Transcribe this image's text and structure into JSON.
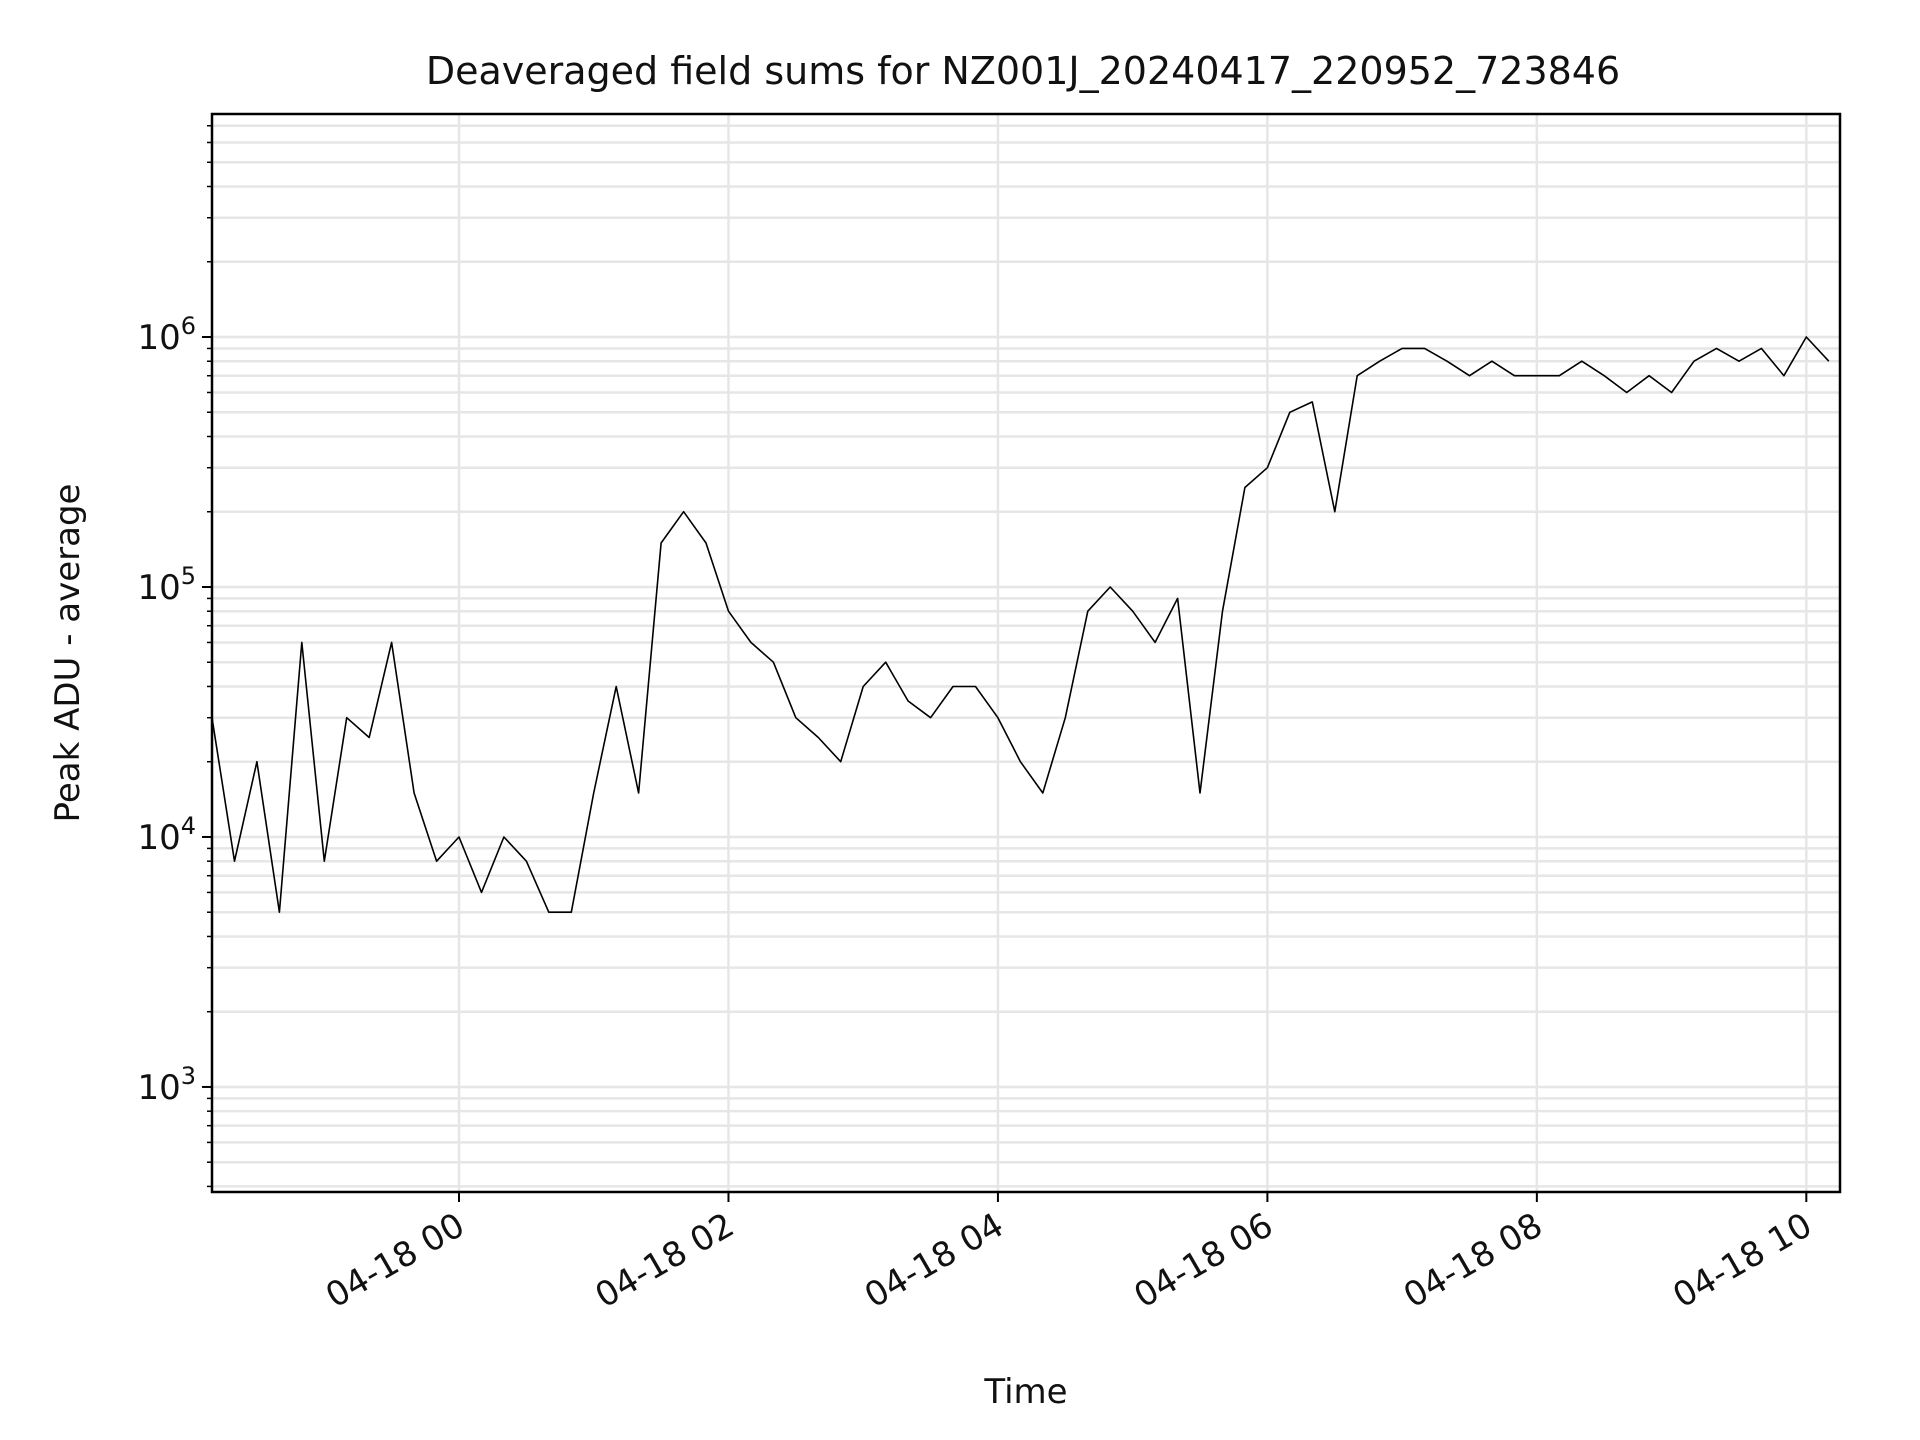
{
  "chart_data": {
    "type": "line",
    "title": "Deaveraged field sums for NZ001J_20240417_220952_723846",
    "xlabel": "Time",
    "ylabel": "Peak ADU - average",
    "yscale": "log",
    "ylim": [
      380,
      7800000
    ],
    "xlim": [
      "2024-04-17T22:10:00",
      "2024-04-18T10:15:00"
    ],
    "grid": true,
    "x_ticks": [
      {
        "value": "2024-04-18T00:00:00",
        "label": "04-18 00"
      },
      {
        "value": "2024-04-18T02:00:00",
        "label": "04-18 02"
      },
      {
        "value": "2024-04-18T04:00:00",
        "label": "04-18 04"
      },
      {
        "value": "2024-04-18T06:00:00",
        "label": "04-18 06"
      },
      {
        "value": "2024-04-18T08:00:00",
        "label": "04-18 08"
      },
      {
        "value": "2024-04-18T10:00:00",
        "label": "04-18 10"
      }
    ],
    "y_ticks": [
      {
        "value": 1000,
        "base": "10",
        "exp": "3"
      },
      {
        "value": 10000,
        "base": "10",
        "exp": "4"
      },
      {
        "value": 100000,
        "base": "10",
        "exp": "5"
      },
      {
        "value": 1000000,
        "base": "10",
        "exp": "6"
      }
    ],
    "series": [
      {
        "color": "#000000",
        "points": [
          [
            "2024-04-17T22:10:00",
            30000
          ],
          [
            "2024-04-17T22:20:00",
            8000
          ],
          [
            "2024-04-17T22:30:00",
            20000
          ],
          [
            "2024-04-17T22:40:00",
            5000
          ],
          [
            "2024-04-17T22:50:00",
            60000
          ],
          [
            "2024-04-17T23:00:00",
            8000
          ],
          [
            "2024-04-17T23:10:00",
            30000
          ],
          [
            "2024-04-17T23:20:00",
            25000
          ],
          [
            "2024-04-17T23:30:00",
            60000
          ],
          [
            "2024-04-17T23:40:00",
            15000
          ],
          [
            "2024-04-17T23:50:00",
            8000
          ],
          [
            "2024-04-18T00:00:00",
            10000
          ],
          [
            "2024-04-18T00:10:00",
            6000
          ],
          [
            "2024-04-18T00:20:00",
            10000
          ],
          [
            "2024-04-18T00:30:00",
            8000
          ],
          [
            "2024-04-18T00:40:00",
            5000
          ],
          [
            "2024-04-18T00:50:00",
            5000
          ],
          [
            "2024-04-18T01:00:00",
            15000
          ],
          [
            "2024-04-18T01:10:00",
            40000
          ],
          [
            "2024-04-18T01:20:00",
            15000
          ],
          [
            "2024-04-18T01:30:00",
            150000
          ],
          [
            "2024-04-18T01:40:00",
            200000
          ],
          [
            "2024-04-18T01:50:00",
            150000
          ],
          [
            "2024-04-18T02:00:00",
            80000
          ],
          [
            "2024-04-18T02:10:00",
            60000
          ],
          [
            "2024-04-18T02:20:00",
            50000
          ],
          [
            "2024-04-18T02:30:00",
            30000
          ],
          [
            "2024-04-18T02:40:00",
            25000
          ],
          [
            "2024-04-18T02:50:00",
            20000
          ],
          [
            "2024-04-18T03:00:00",
            40000
          ],
          [
            "2024-04-18T03:10:00",
            50000
          ],
          [
            "2024-04-18T03:20:00",
            35000
          ],
          [
            "2024-04-18T03:30:00",
            30000
          ],
          [
            "2024-04-18T03:40:00",
            40000
          ],
          [
            "2024-04-18T03:50:00",
            40000
          ],
          [
            "2024-04-18T04:00:00",
            30000
          ],
          [
            "2024-04-18T04:10:00",
            20000
          ],
          [
            "2024-04-18T04:20:00",
            15000
          ],
          [
            "2024-04-18T04:30:00",
            30000
          ],
          [
            "2024-04-18T04:40:00",
            80000
          ],
          [
            "2024-04-18T04:50:00",
            100000
          ],
          [
            "2024-04-18T05:00:00",
            80000
          ],
          [
            "2024-04-18T05:10:00",
            60000
          ],
          [
            "2024-04-18T05:20:00",
            90000
          ],
          [
            "2024-04-18T05:30:00",
            15000
          ],
          [
            "2024-04-18T05:40:00",
            80000
          ],
          [
            "2024-04-18T05:50:00",
            250000
          ],
          [
            "2024-04-18T06:00:00",
            300000
          ],
          [
            "2024-04-18T06:10:00",
            500000
          ],
          [
            "2024-04-18T06:20:00",
            550000
          ],
          [
            "2024-04-18T06:30:00",
            200000
          ],
          [
            "2024-04-18T06:40:00",
            700000
          ],
          [
            "2024-04-18T06:50:00",
            800000
          ],
          [
            "2024-04-18T07:00:00",
            900000
          ],
          [
            "2024-04-18T07:10:00",
            900000
          ],
          [
            "2024-04-18T07:20:00",
            800000
          ],
          [
            "2024-04-18T07:30:00",
            700000
          ],
          [
            "2024-04-18T07:40:00",
            800000
          ],
          [
            "2024-04-18T07:50:00",
            700000
          ],
          [
            "2024-04-18T08:00:00",
            700000
          ],
          [
            "2024-04-18T08:10:00",
            700000
          ],
          [
            "2024-04-18T08:20:00",
            800000
          ],
          [
            "2024-04-18T08:30:00",
            700000
          ],
          [
            "2024-04-18T08:40:00",
            600000
          ],
          [
            "2024-04-18T08:50:00",
            700000
          ],
          [
            "2024-04-18T09:00:00",
            600000
          ],
          [
            "2024-04-18T09:10:00",
            800000
          ],
          [
            "2024-04-18T09:20:00",
            900000
          ],
          [
            "2024-04-18T09:30:00",
            800000
          ],
          [
            "2024-04-18T09:40:00",
            900000
          ],
          [
            "2024-04-18T09:50:00",
            700000
          ],
          [
            "2024-04-18T10:00:00",
            1000000
          ],
          [
            "2024-04-18T10:10:00",
            800000
          ]
        ]
      }
    ]
  }
}
